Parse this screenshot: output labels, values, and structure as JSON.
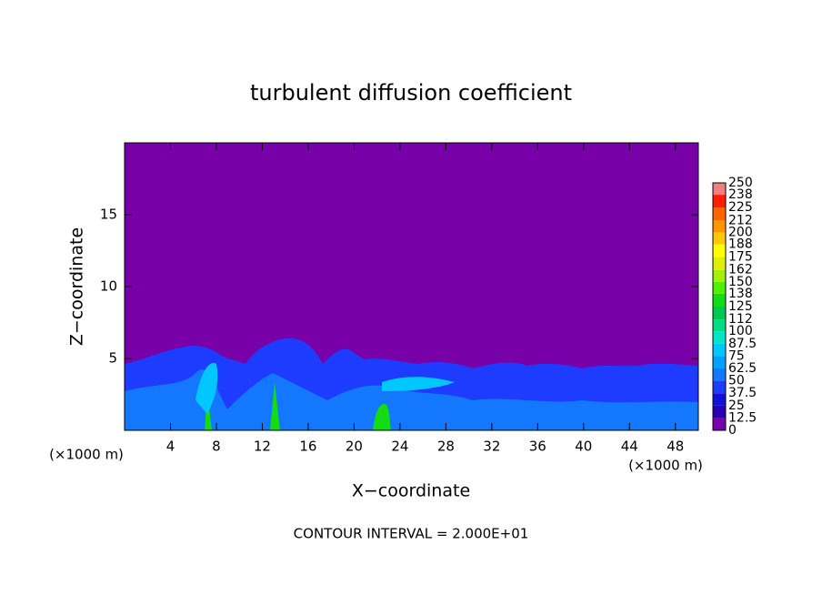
{
  "chart_data": {
    "type": "contour",
    "title": "turbulent diffusion coefficient",
    "x_label": "X−coordinate",
    "y_label": "Z−coordinate",
    "x_unit_label": "(×1000 m)",
    "footnote": "CONTOUR INTERVAL = 2.000E+01",
    "xlim": [
      0,
      50
    ],
    "xticks": [
      4,
      8,
      12,
      16,
      20,
      24,
      28,
      32,
      36,
      40,
      44,
      48
    ],
    "ylim": [
      0,
      20
    ],
    "yticks": [
      5,
      10,
      15
    ],
    "colorbar": {
      "levels": [
        0,
        12.5,
        25,
        37.5,
        50,
        62.5,
        75,
        87.5,
        100,
        112,
        125,
        138,
        150,
        162,
        175,
        188,
        200,
        212,
        225,
        238,
        250
      ],
      "colors": [
        "#7800a8",
        "#2800b0",
        "#1010d8",
        "#1e3cff",
        "#1478ff",
        "#00a0ff",
        "#00c8ff",
        "#00e6c8",
        "#00dc82",
        "#00c850",
        "#14dc14",
        "#50f000",
        "#a0f000",
        "#dcf000",
        "#ffff00",
        "#ffc800",
        "#ff9600",
        "#ff6400",
        "#ff1e00",
        "#f08080"
      ]
    }
  }
}
